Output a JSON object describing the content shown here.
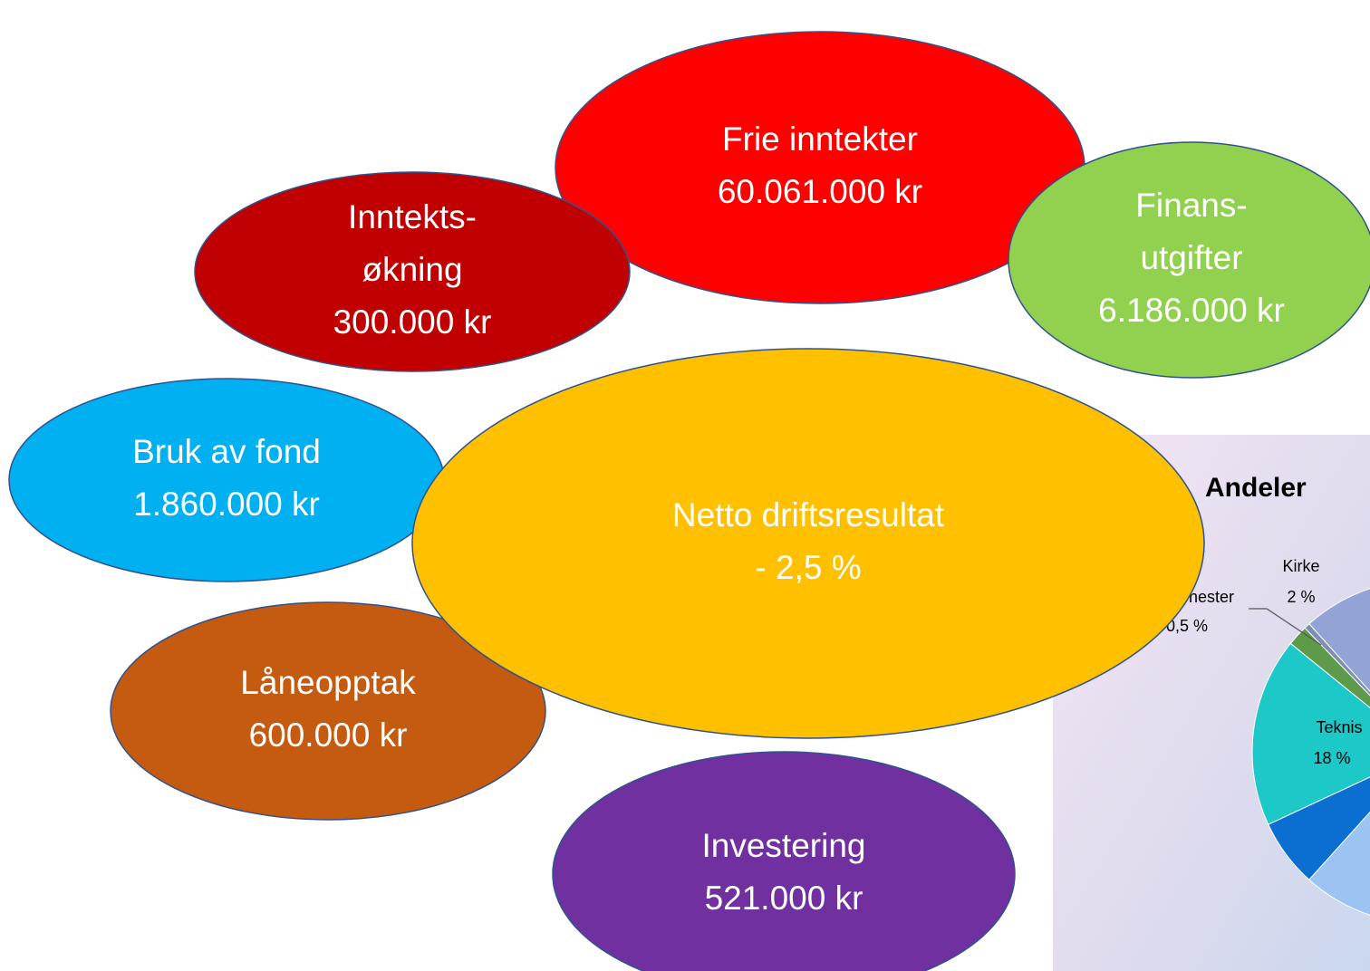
{
  "nodes": [
    {
      "lines": [
        "Frie inntekter",
        "60.061.000 kr"
      ]
    },
    {
      "lines": [
        "Inntekts-",
        "økning",
        "300.000 kr"
      ]
    },
    {
      "lines": [
        "Finans-",
        "utgifter",
        "6.186.000 kr"
      ]
    },
    {
      "lines": [
        "Bruk av fond",
        "1.860.000 kr"
      ]
    },
    {
      "lines": [
        "Låneopptak",
        "600.000 kr"
      ]
    },
    {
      "lines": [
        "Investering",
        "521.000 kr"
      ]
    },
    {
      "lines": [
        "Netto driftsresultat",
        "- 2,5 %"
      ]
    }
  ],
  "pie_panel": {
    "title": "Andeler",
    "labels": [
      {
        "name": "Kirke",
        "value": "2 %"
      },
      {
        "name": "jenester",
        "value": "0,5 %"
      },
      {
        "name": "Teknis",
        "value": "18 %"
      }
    ]
  }
}
